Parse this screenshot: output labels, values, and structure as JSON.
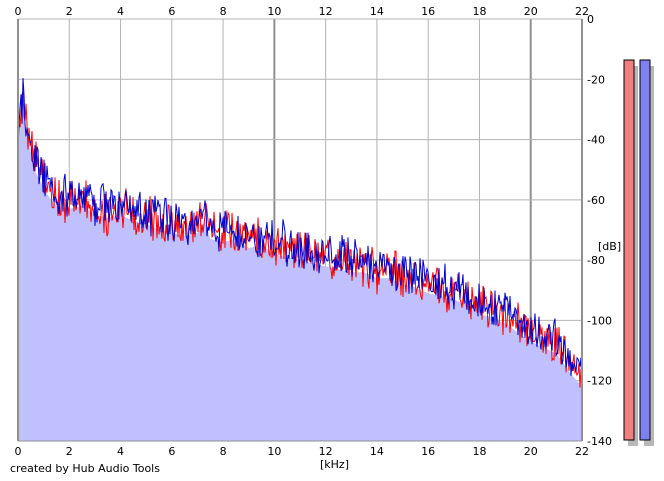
{
  "credit": "created by Hub Audio Tools",
  "colors": {
    "grid": "#b4b4b4",
    "fill": "#c0c0ff",
    "left_channel": "#ff0000",
    "right_channel": "#0000cc",
    "meter_left": "#f08080",
    "meter_right": "#8080f0"
  },
  "chart_data": {
    "type": "line",
    "xlabel": "[kHz]",
    "ylabel": "[dB]",
    "xlim": [
      0,
      22
    ],
    "ylim": [
      -140,
      0
    ],
    "x_ticks": [
      "0",
      "2",
      "4",
      "6",
      "8",
      "10",
      "12",
      "14",
      "16",
      "18",
      "20",
      "22"
    ],
    "y_ticks": [
      "0",
      "-20",
      "-40",
      "-60",
      "-80",
      "-100",
      "-120",
      "-140"
    ],
    "grid": true,
    "legend": "none",
    "series": [
      {
        "channel": "left",
        "x": [
          0,
          0.1,
          0.2,
          0.3,
          0.5,
          0.7,
          1,
          1.2,
          1.5,
          2,
          2.5,
          3,
          3.5,
          4,
          4.5,
          5,
          5.5,
          6,
          6.5,
          7,
          7.3,
          7.5,
          8,
          8.5,
          9,
          9.5,
          10,
          10.5,
          11,
          11.5,
          12,
          12.5,
          13,
          13.5,
          14,
          14.5,
          15,
          15.5,
          16,
          16.5,
          17,
          17.5,
          18,
          18.5,
          19,
          19.5,
          20,
          20.5,
          21,
          21.5,
          22
        ],
        "y": [
          -45,
          -32,
          -28,
          -34,
          -40,
          -47,
          -52,
          -56,
          -60,
          -61,
          -60,
          -63,
          -64,
          -62,
          -65,
          -66,
          -67,
          -68,
          -69,
          -68,
          -64,
          -70,
          -71,
          -70,
          -73,
          -72,
          -75,
          -76,
          -77,
          -78,
          -79,
          -80,
          -81,
          -81,
          -83,
          -83,
          -85,
          -86,
          -88,
          -89,
          -90,
          -92,
          -95,
          -96,
          -98,
          -101,
          -104,
          -106,
          -108,
          -114,
          -120
        ]
      },
      {
        "channel": "right",
        "x": [
          0,
          0.1,
          0.2,
          0.3,
          0.5,
          0.7,
          1,
          1.2,
          1.5,
          2,
          2.5,
          3,
          3.5,
          4,
          4.5,
          5,
          5.5,
          6,
          6.5,
          7,
          7.3,
          7.5,
          8,
          8.5,
          9,
          9.5,
          10,
          10.5,
          11,
          11.5,
          12,
          12.5,
          13,
          13.5,
          14,
          14.5,
          15,
          15.5,
          16,
          16.5,
          17,
          17.5,
          18,
          18.5,
          19,
          19.5,
          20,
          20.5,
          21,
          21.5,
          22
        ],
        "y": [
          -42,
          -30,
          -27,
          -35,
          -41,
          -48,
          -53,
          -55,
          -58,
          -59,
          -58,
          -61,
          -62,
          -61,
          -63,
          -64,
          -66,
          -67,
          -68,
          -67,
          -63,
          -69,
          -70,
          -69,
          -72,
          -71,
          -74,
          -75,
          -76,
          -77,
          -78,
          -79,
          -80,
          -80,
          -82,
          -82,
          -84,
          -85,
          -87,
          -88,
          -89,
          -91,
          -94,
          -95,
          -97,
          -100,
          -103,
          -105,
          -107,
          -113,
          -118
        ]
      }
    ],
    "level_meters": [
      {
        "channel": "left",
        "level_db": 0
      },
      {
        "channel": "right",
        "level_db": 0
      }
    ]
  }
}
